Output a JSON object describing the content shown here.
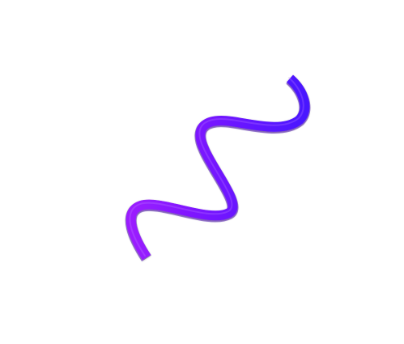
{
  "scene": {
    "background_color": "#ffffff",
    "shape": {
      "kind": "squiggle",
      "icon": "squiggle-icon",
      "gradient_start": "#9b1bff",
      "gradient_end": "#4a14ff",
      "shadow_color": "#5a18c9"
    }
  }
}
